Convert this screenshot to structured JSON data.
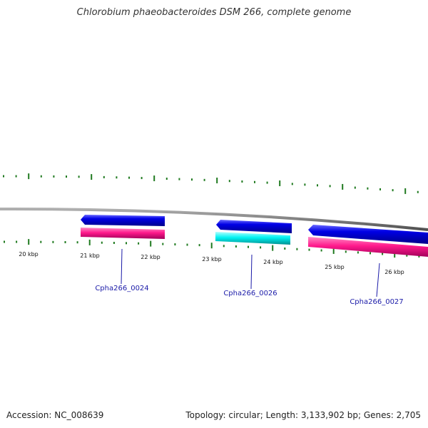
{
  "title": "Chlorobium phaeobacteroides DSM 266, complete genome",
  "footer": {
    "accession": "Accession: NC_008639",
    "summary": "Topology: circular; Length: 3,133,902 bp; Genes: 2,705"
  },
  "colors": {
    "backbone": "#808080",
    "tick": "#1f7a1f",
    "gene_forward": "#0000e6",
    "gene_reverse": "#ff1a8c",
    "gene_cyan": "#00f2f2",
    "gene_label": "#1a1aa8"
  },
  "scale": {
    "labels": [
      "20 kbp",
      "21 kbp",
      "22 kbp",
      "23 kbp",
      "24 kbp",
      "25 kbp",
      "26 kbp"
    ]
  },
  "genes": [
    {
      "name": "Cpha266_0024",
      "strand": "-",
      "color": "gene_forward",
      "track": "outer"
    },
    {
      "name": "",
      "strand": "+",
      "color": "gene_reverse",
      "track": "inner"
    },
    {
      "name": "",
      "strand": "-",
      "color": "gene_forward",
      "track": "outer"
    },
    {
      "name": "Cpha266_0026",
      "strand": "+",
      "color": "gene_cyan",
      "track": "inner"
    },
    {
      "name": "",
      "strand": "-",
      "color": "gene_forward",
      "track": "outer"
    },
    {
      "name": "Cpha266_0027",
      "strand": "+",
      "color": "gene_reverse",
      "track": "inner"
    }
  ]
}
